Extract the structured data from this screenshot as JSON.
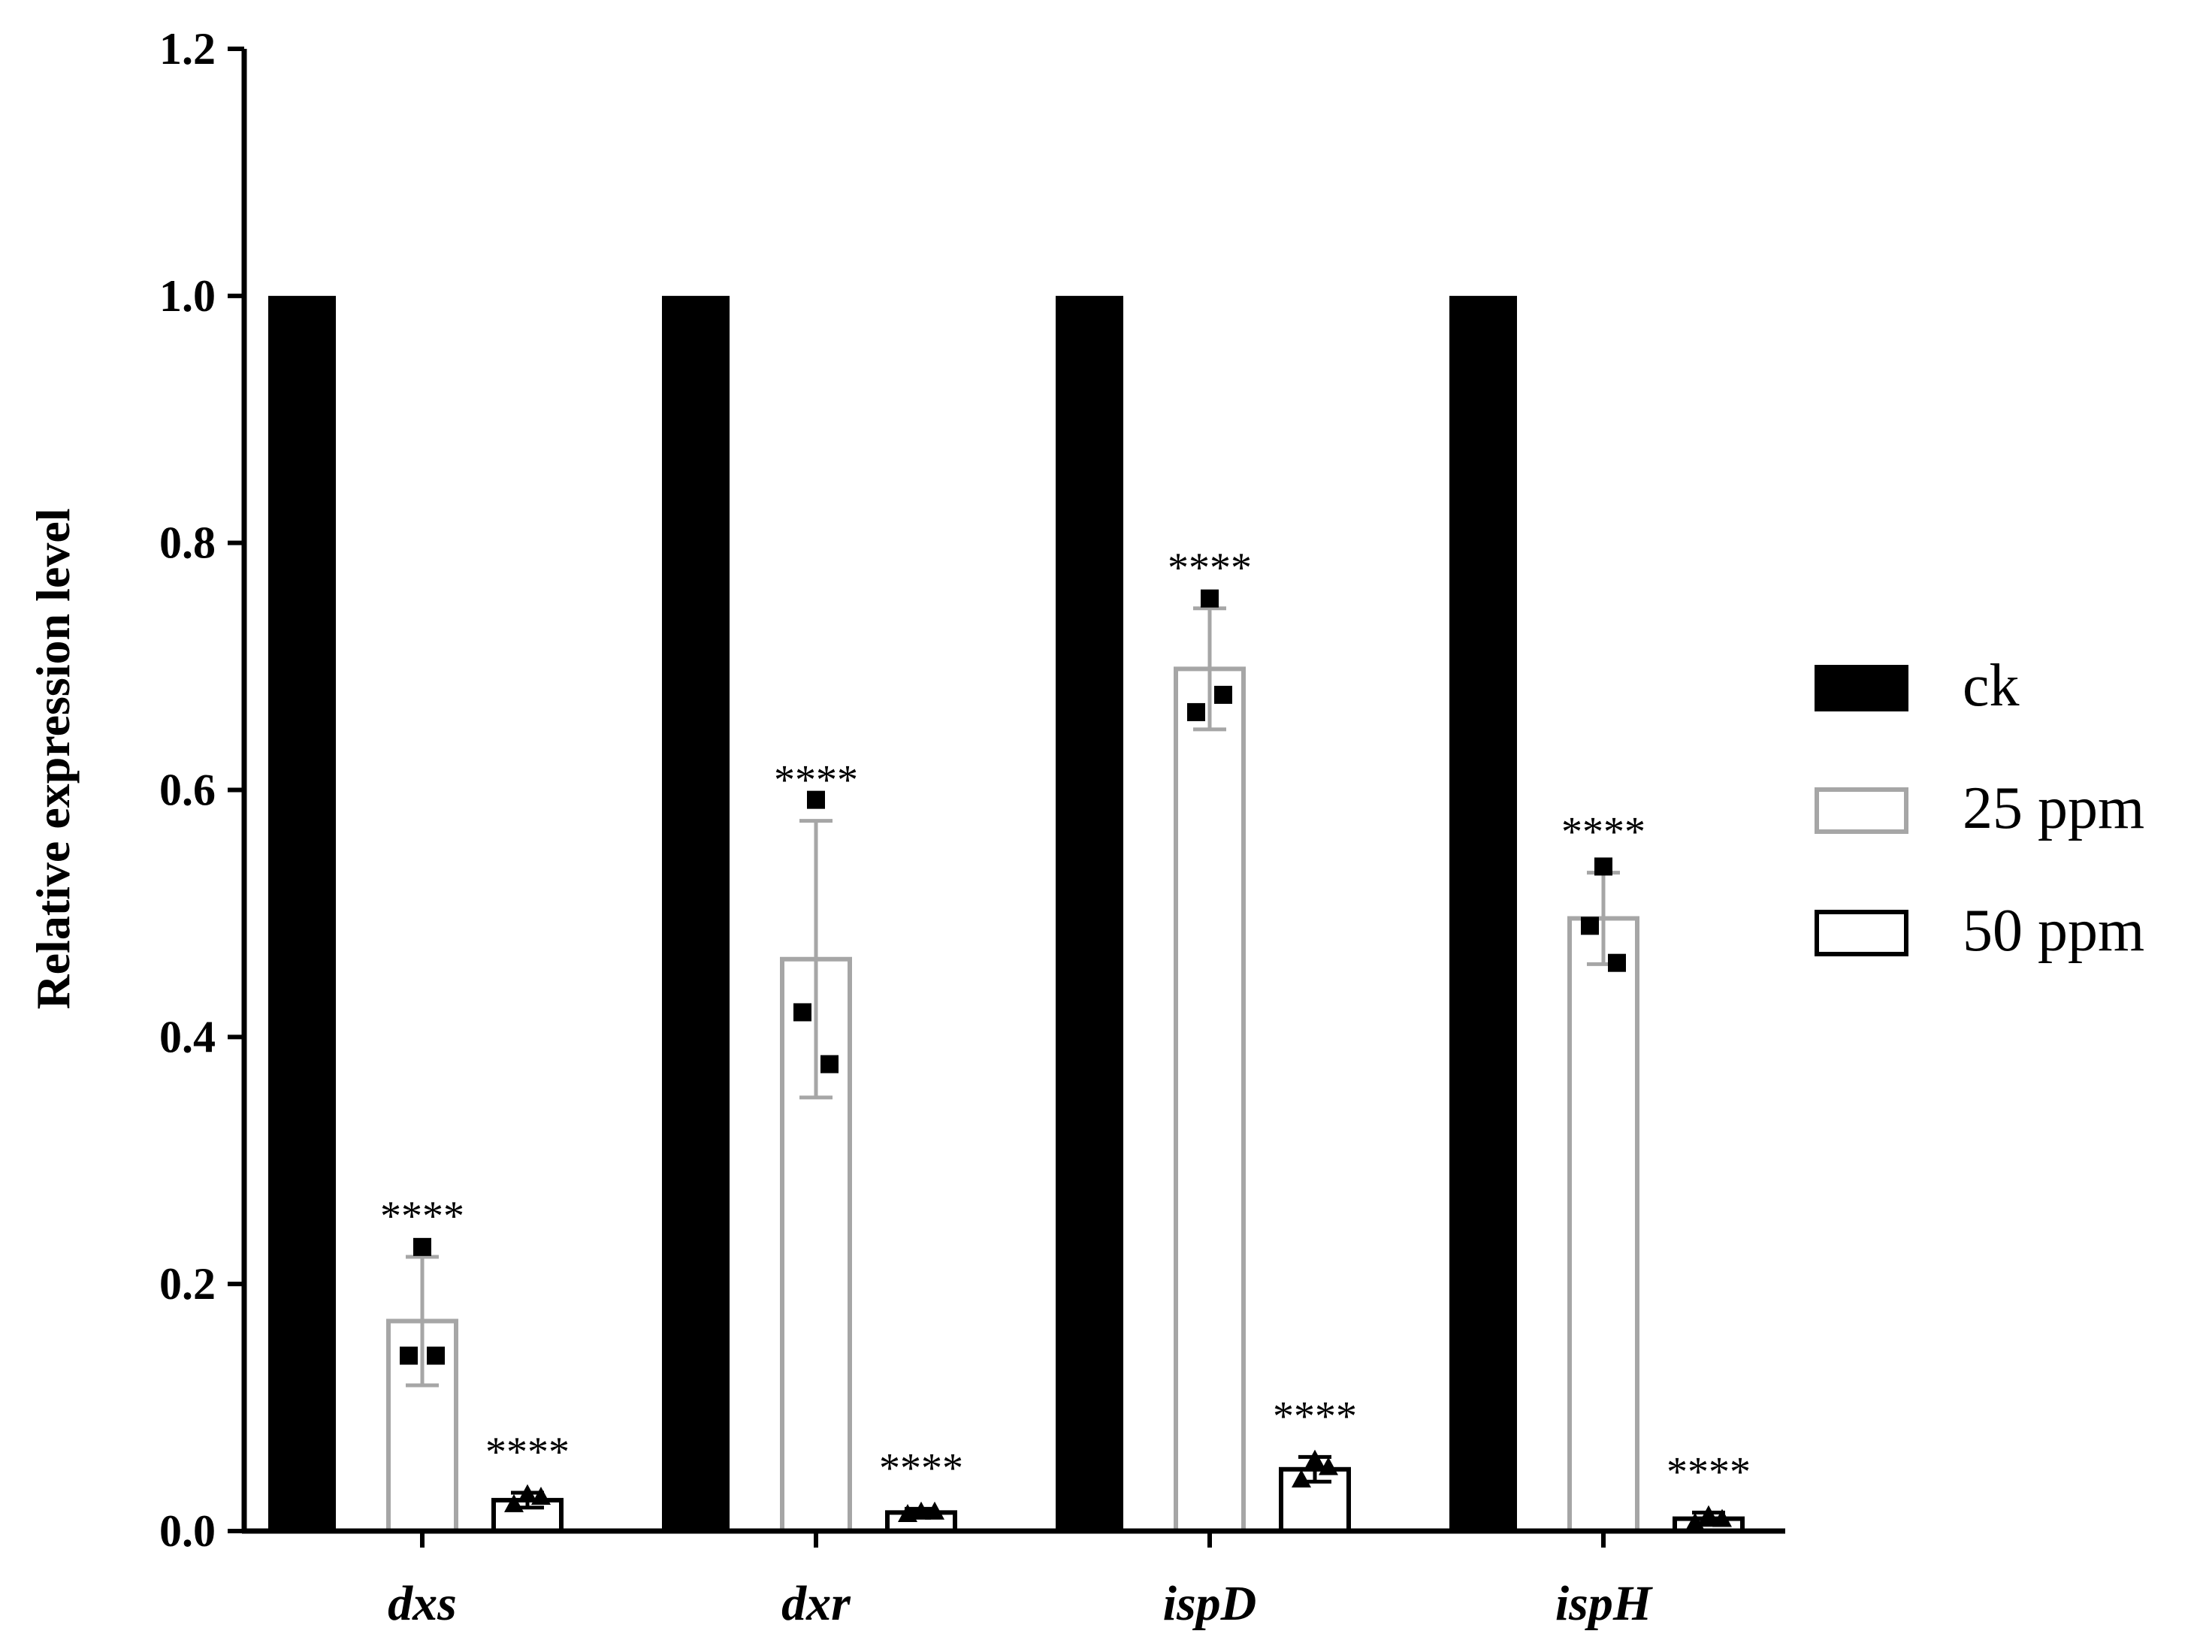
{
  "chart_data": {
    "type": "bar",
    "title": "",
    "xlabel": "",
    "ylabel": "Relative expression level",
    "ylim": [
      0,
      1.2
    ],
    "yticks": [
      "0.0",
      "0.2",
      "0.4",
      "0.6",
      "0.8",
      "1.0",
      "1.2"
    ],
    "categories": [
      "dxs",
      "dxr",
      "ispD",
      "ispH"
    ],
    "legend_position": "right",
    "grid": false,
    "series": [
      {
        "name": "ck",
        "style": "filled",
        "color": "#000000",
        "values": [
          1.0,
          1.0,
          1.0,
          1.0
        ],
        "sd": [
          0,
          0,
          0,
          0
        ],
        "points": [
          [],
          [],
          [],
          []
        ],
        "marker": "none",
        "significance": [
          "",
          "",
          "",
          ""
        ]
      },
      {
        "name": "25 ppm",
        "style": "outline",
        "color": "#a6a6a6",
        "values": [
          0.17,
          0.463,
          0.698,
          0.496
        ],
        "sd": [
          0.052,
          0.112,
          0.049,
          0.037
        ],
        "points": [
          [
            0.23,
            0.142,
            0.142
          ],
          [
            0.592,
            0.42,
            0.378
          ],
          [
            0.755,
            0.663,
            0.677
          ],
          [
            0.538,
            0.49,
            0.46
          ]
        ],
        "marker": "square",
        "significance": [
          "****",
          "****",
          "****",
          "****"
        ]
      },
      {
        "name": "50 ppm",
        "style": "outline",
        "color": "#000000",
        "values": [
          0.025,
          0.015,
          0.05,
          0.01
        ],
        "sd": [
          0.006,
          0.003,
          0.01,
          0.005
        ],
        "points": [
          [
            0.03,
            0.022,
            0.028
          ],
          [
            0.016,
            0.014,
            0.016
          ],
          [
            0.058,
            0.042,
            0.052
          ],
          [
            0.013,
            0.007,
            0.01
          ]
        ],
        "marker": "triangle",
        "significance": [
          "****",
          "****",
          "****",
          "****"
        ]
      }
    ]
  }
}
